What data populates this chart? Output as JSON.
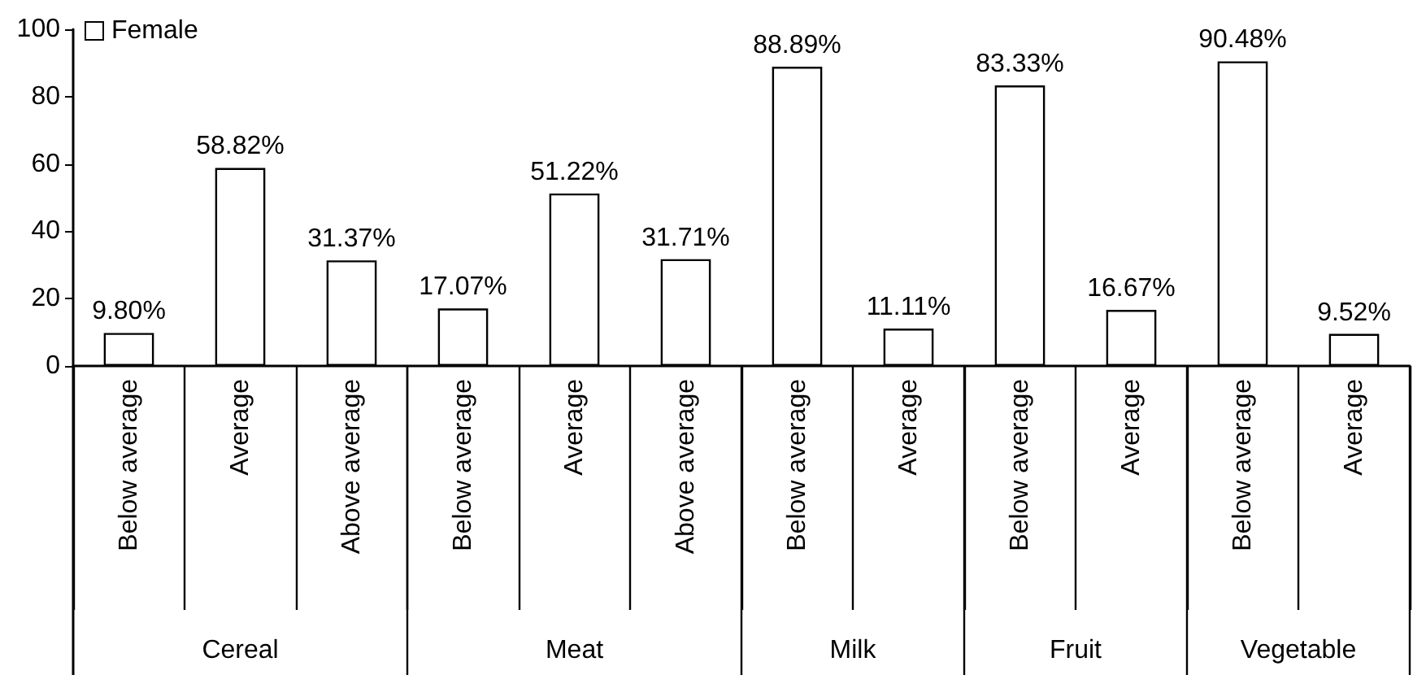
{
  "chart_data": {
    "type": "bar",
    "categories": [
      "Below average",
      "Average",
      "Above average",
      "Below average",
      "Average",
      "Above average",
      "Below average",
      "Average",
      "Below average",
      "Average",
      "Below average",
      "Average"
    ],
    "series": [
      {
        "name": "Female",
        "color": "#ffffff",
        "values": [
          9.8,
          58.82,
          31.37,
          17.07,
          51.22,
          31.71,
          88.89,
          11.11,
          83.33,
          16.67,
          90.48,
          9.52
        ],
        "value_labels": [
          "9.80%",
          "58.82%",
          "31.37%",
          "17.07%",
          "51.22%",
          "31.71%",
          "88.89%",
          "11.11%",
          "83.33%",
          "16.67%",
          "90.48%",
          "9.52%"
        ]
      }
    ],
    "annotations": [
      "Cereal",
      "Meat",
      "Milk",
      "Fruit",
      "Vegetable"
    ],
    "ylim": [
      0,
      100
    ],
    "yticks": [
      0,
      20,
      40,
      60,
      80,
      100
    ],
    "grid": false,
    "legend": "top left"
  }
}
